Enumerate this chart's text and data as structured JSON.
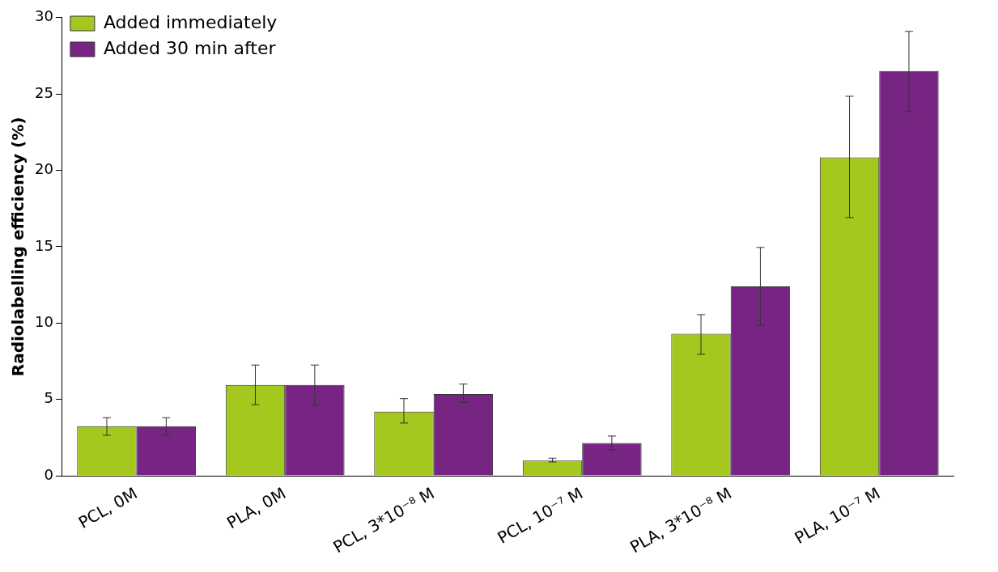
{
  "chart_data": {
    "type": "bar",
    "ylabel": "Radiolabelling efficiency (%)",
    "categories": [
      "PCL, 0M",
      "PLA, 0M",
      "PCL, 3*10⁻⁸ M",
      "PCL, 10⁻⁷ M",
      "PLA, 3*10⁻⁸ M",
      "PLA, 10⁻⁷ M"
    ],
    "series": [
      {
        "name": "Added immediately",
        "color": "#a4c81e",
        "values": [
          3.25,
          5.95,
          4.2,
          1.0,
          9.3,
          20.85
        ],
        "errors": [
          [
            2.65,
            3.8
          ],
          [
            4.65,
            7.25
          ],
          [
            3.45,
            5.05
          ],
          [
            0.9,
            1.15
          ],
          [
            7.95,
            10.55
          ],
          [
            16.9,
            24.85
          ]
        ]
      },
      {
        "name": "Added 30 min after",
        "color": "#772583",
        "values": [
          3.25,
          5.95,
          5.35,
          2.15,
          12.4,
          26.5
        ],
        "errors": [
          [
            2.65,
            3.8
          ],
          [
            4.65,
            7.25
          ],
          [
            4.8,
            6.0
          ],
          [
            1.7,
            2.6
          ],
          [
            9.85,
            14.95
          ],
          [
            23.85,
            29.1
          ]
        ]
      }
    ],
    "ylim": [
      0,
      30
    ],
    "yticks": [
      0,
      5,
      10,
      15,
      20,
      25,
      30
    ],
    "grid": false,
    "legend": "top left"
  }
}
